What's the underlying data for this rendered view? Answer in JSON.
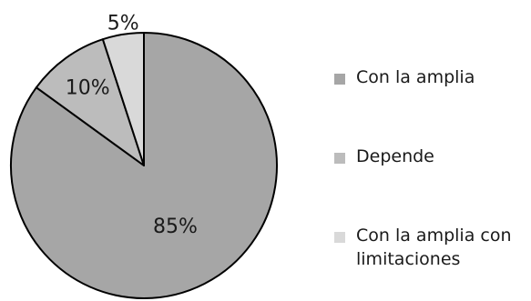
{
  "chart_data": {
    "type": "pie",
    "categories": [
      "Con la amplia",
      "Depende",
      "Con la amplia con limitaciones"
    ],
    "values": [
      85,
      10,
      5
    ],
    "value_labels": [
      "85%",
      "10%",
      "5%"
    ],
    "colors": [
      "#a6a6a6",
      "#bcbcbc",
      "#d9d9d9"
    ],
    "legend": {
      "position": "right",
      "entries": [
        {
          "lines": [
            "Con la amplia"
          ],
          "color": "#a6a6a6"
        },
        {
          "lines": [
            "Depende"
          ],
          "color": "#bcbcbc"
        },
        {
          "lines": [
            "Con la amplia con",
            "limitaciones"
          ],
          "color": "#d9d9d9"
        }
      ]
    }
  }
}
